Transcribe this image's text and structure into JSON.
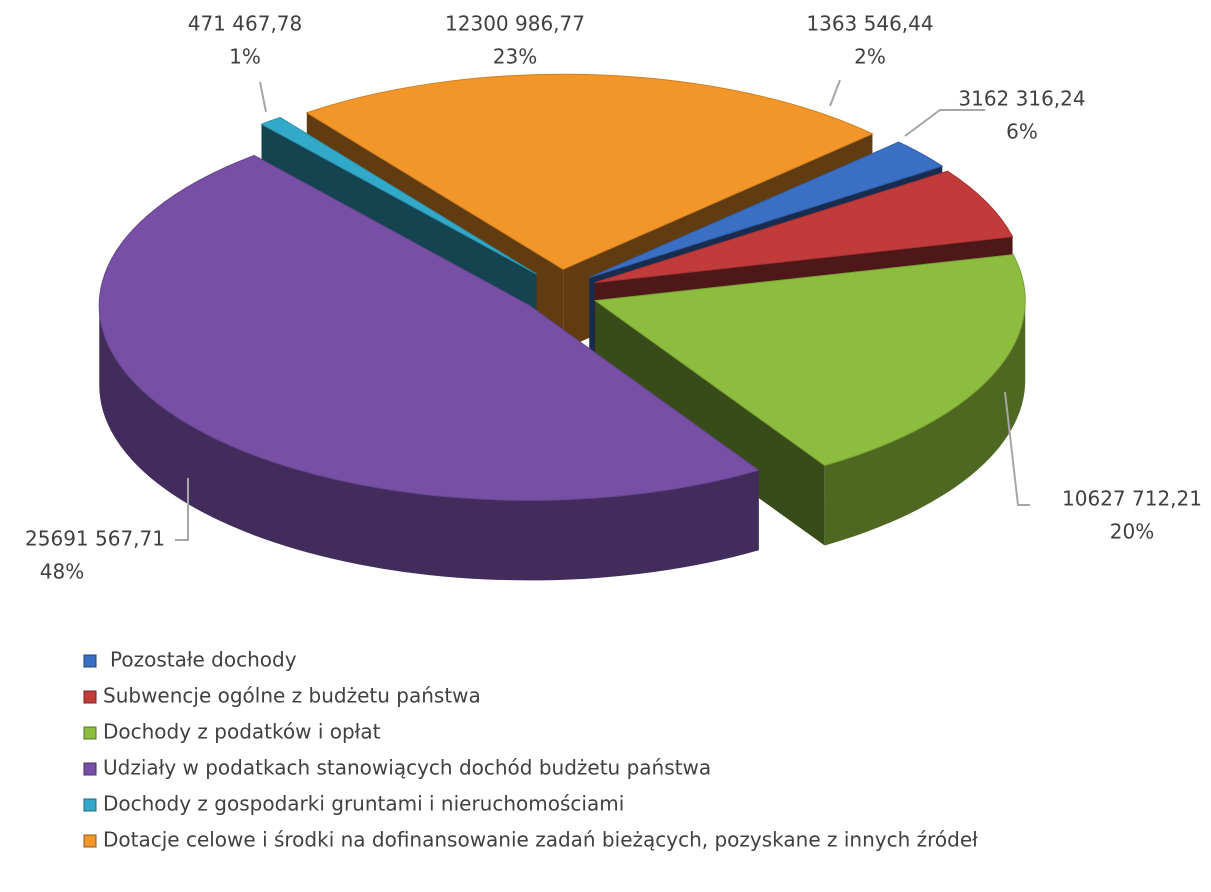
{
  "chart_data": {
    "type": "pie3d",
    "categories": [
      "Pozostałe dochody",
      "Subwencje ogólne z budżetu państwa",
      "Dochody z podatków i opłat",
      "Udziały w podatkach stanowiących dochód budżetu państwa",
      "Dochody z gospodarki gruntami i nieruchomościami",
      "Dotacje celowe i środki na dofinansowanie zadań bieżących, pozyskane z innych źródeł"
    ],
    "values": [
      1363546.44,
      3162316.24,
      10627712.21,
      25691567.71,
      471467.78,
      12300986.77
    ],
    "value_labels": [
      "1363 546,44",
      "3162 316,24",
      "10627 712,21",
      "25691 567,71",
      "471 467,78",
      "12300 986,77"
    ],
    "percent_labels": [
      "2%",
      "6%",
      "20%",
      "48%",
      "1%",
      "23%"
    ],
    "colors": [
      "#3a6fc4",
      "#c23b3b",
      "#8dbd3e",
      "#7750a6",
      "#33a9c9",
      "#f3962a"
    ],
    "legend": "bottom-left"
  }
}
